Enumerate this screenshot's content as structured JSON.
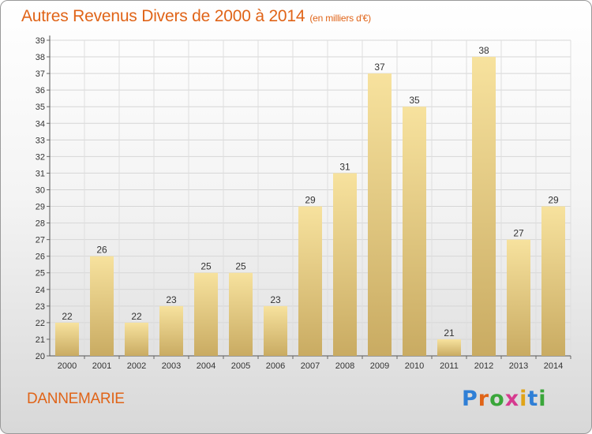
{
  "header": {
    "title": "Autres Revenus Divers de 2000 à 2014",
    "unit": "(en milliers d'€)"
  },
  "footer": {
    "commune": "DANNEMARIE",
    "logo": "Proxiti"
  },
  "colors": {
    "title": "#e06418",
    "bar_light": "#f7e29e",
    "bar_dark": "#c9ab62",
    "logo": [
      "#2f7fd6",
      "#e06418",
      "#3aa63a",
      "#d63a8f",
      "#e0a418",
      "#2f7fd6",
      "#3aa63a"
    ]
  },
  "chart_data": {
    "type": "bar",
    "title": "Autres Revenus Divers de 2000 à 2014",
    "subtitle": "(en milliers d'€)",
    "xlabel": "",
    "ylabel": "",
    "categories": [
      "2000",
      "2001",
      "2002",
      "2003",
      "2004",
      "2005",
      "2006",
      "2007",
      "2008",
      "2009",
      "2010",
      "2011",
      "2012",
      "2013",
      "2014"
    ],
    "values": [
      22,
      26,
      22,
      23,
      25,
      25,
      23,
      29,
      31,
      37,
      35,
      21,
      38,
      27,
      29
    ],
    "ylim": [
      20,
      39
    ],
    "yticks": [
      20,
      21,
      22,
      23,
      24,
      25,
      26,
      27,
      28,
      29,
      30,
      31,
      32,
      33,
      34,
      35,
      36,
      37,
      38,
      39
    ],
    "grid": true
  }
}
